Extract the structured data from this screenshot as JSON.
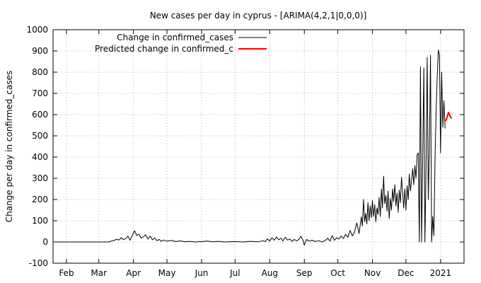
{
  "chart_data": {
    "type": "line",
    "title": "New cases per day in cyprus -  [ARIMA(4,2,1|0,0,0)]",
    "xlabel": "",
    "ylabel": "Change per day in confirmed_cases",
    "x_axis": "date",
    "xlim": [
      "2020-01-20",
      "2021-01-22"
    ],
    "ylim": [
      -100,
      1000
    ],
    "yticks": [
      -100,
      0,
      100,
      200,
      300,
      400,
      500,
      600,
      700,
      800,
      900,
      1000
    ],
    "xticks": [
      {
        "date": "2020-02-01",
        "label": "Feb"
      },
      {
        "date": "2020-03-01",
        "label": "Mar"
      },
      {
        "date": "2020-04-01",
        "label": "Apr"
      },
      {
        "date": "2020-05-01",
        "label": "May"
      },
      {
        "date": "2020-06-01",
        "label": "Jun"
      },
      {
        "date": "2020-07-01",
        "label": "Jul"
      },
      {
        "date": "2020-08-01",
        "label": "Aug"
      },
      {
        "date": "2020-09-01",
        "label": "Sep"
      },
      {
        "date": "2020-10-01",
        "label": "Oct"
      },
      {
        "date": "2020-11-01",
        "label": "Nov"
      },
      {
        "date": "2020-12-01",
        "label": "Dec"
      },
      {
        "date": "2021-01-01",
        "label": "2021"
      }
    ],
    "grid": true,
    "legend_position": "top-left",
    "series": [
      {
        "name": "Change in confirmed_cases",
        "color": "#000000",
        "points": [
          [
            "2020-01-22",
            0
          ],
          [
            "2020-02-15",
            0
          ],
          [
            "2020-03-09",
            0
          ],
          [
            "2020-03-11",
            2
          ],
          [
            "2020-03-13",
            6
          ],
          [
            "2020-03-15",
            8
          ],
          [
            "2020-03-17",
            13
          ],
          [
            "2020-03-19",
            9
          ],
          [
            "2020-03-21",
            20
          ],
          [
            "2020-03-23",
            11
          ],
          [
            "2020-03-25",
            16
          ],
          [
            "2020-03-27",
            27
          ],
          [
            "2020-03-29",
            8
          ],
          [
            "2020-03-31",
            32
          ],
          [
            "2020-04-02",
            53
          ],
          [
            "2020-04-04",
            30
          ],
          [
            "2020-04-06",
            36
          ],
          [
            "2020-04-08",
            18
          ],
          [
            "2020-04-10",
            25
          ],
          [
            "2020-04-12",
            34
          ],
          [
            "2020-04-14",
            14
          ],
          [
            "2020-04-16",
            28
          ],
          [
            "2020-04-18",
            10
          ],
          [
            "2020-04-20",
            19
          ],
          [
            "2020-04-22",
            6
          ],
          [
            "2020-04-24",
            12
          ],
          [
            "2020-04-26",
            3
          ],
          [
            "2020-04-28",
            9
          ],
          [
            "2020-05-01",
            4
          ],
          [
            "2020-05-05",
            7
          ],
          [
            "2020-05-09",
            2
          ],
          [
            "2020-05-13",
            5
          ],
          [
            "2020-05-17",
            1
          ],
          [
            "2020-05-21",
            3
          ],
          [
            "2020-05-26",
            0
          ],
          [
            "2020-06-01",
            2
          ],
          [
            "2020-06-06",
            4
          ],
          [
            "2020-06-11",
            1
          ],
          [
            "2020-06-16",
            3
          ],
          [
            "2020-06-21",
            0
          ],
          [
            "2020-06-26",
            1
          ],
          [
            "2020-07-01",
            2
          ],
          [
            "2020-07-08",
            0
          ],
          [
            "2020-07-15",
            3
          ],
          [
            "2020-07-22",
            1
          ],
          [
            "2020-07-26",
            6
          ],
          [
            "2020-07-28",
            2
          ],
          [
            "2020-07-30",
            15
          ],
          [
            "2020-08-01",
            4
          ],
          [
            "2020-08-03",
            20
          ],
          [
            "2020-08-05",
            8
          ],
          [
            "2020-08-07",
            24
          ],
          [
            "2020-08-09",
            10
          ],
          [
            "2020-08-11",
            18
          ],
          [
            "2020-08-13",
            5
          ],
          [
            "2020-08-15",
            22
          ],
          [
            "2020-08-17",
            9
          ],
          [
            "2020-08-19",
            14
          ],
          [
            "2020-08-21",
            3
          ],
          [
            "2020-08-23",
            12
          ],
          [
            "2020-08-25",
            5
          ],
          [
            "2020-08-27",
            11
          ],
          [
            "2020-08-29",
            27
          ],
          [
            "2020-08-31",
            5
          ],
          [
            "2020-09-01",
            -15
          ],
          [
            "2020-09-03",
            12
          ],
          [
            "2020-09-05",
            4
          ],
          [
            "2020-09-08",
            8
          ],
          [
            "2020-09-11",
            2
          ],
          [
            "2020-09-14",
            6
          ],
          [
            "2020-09-17",
            0
          ],
          [
            "2020-09-20",
            8
          ],
          [
            "2020-09-22",
            18
          ],
          [
            "2020-09-24",
            4
          ],
          [
            "2020-09-26",
            30
          ],
          [
            "2020-09-28",
            8
          ],
          [
            "2020-09-30",
            20
          ],
          [
            "2020-10-02",
            14
          ],
          [
            "2020-10-04",
            28
          ],
          [
            "2020-10-06",
            16
          ],
          [
            "2020-10-08",
            36
          ],
          [
            "2020-10-10",
            22
          ],
          [
            "2020-10-12",
            54
          ],
          [
            "2020-10-14",
            28
          ],
          [
            "2020-10-16",
            48
          ],
          [
            "2020-10-18",
            90
          ],
          [
            "2020-10-20",
            40
          ],
          [
            "2020-10-22",
            118
          ],
          [
            "2020-10-23",
            75
          ],
          [
            "2020-10-24",
            200
          ],
          [
            "2020-10-25",
            95
          ],
          [
            "2020-10-26",
            135
          ],
          [
            "2020-10-27",
            85
          ],
          [
            "2020-10-28",
            185
          ],
          [
            "2020-10-29",
            100
          ],
          [
            "2020-10-30",
            170
          ],
          [
            "2020-10-31",
            115
          ],
          [
            "2020-11-01",
            195
          ],
          [
            "2020-11-02",
            120
          ],
          [
            "2020-11-03",
            175
          ],
          [
            "2020-11-04",
            95
          ],
          [
            "2020-11-05",
            160
          ],
          [
            "2020-11-06",
            130
          ],
          [
            "2020-11-07",
            210
          ],
          [
            "2020-11-08",
            120
          ],
          [
            "2020-11-09",
            250
          ],
          [
            "2020-11-10",
            160
          ],
          [
            "2020-11-11",
            310
          ],
          [
            "2020-11-12",
            180
          ],
          [
            "2020-11-13",
            220
          ],
          [
            "2020-11-14",
            145
          ],
          [
            "2020-11-15",
            240
          ],
          [
            "2020-11-16",
            110
          ],
          [
            "2020-11-17",
            205
          ],
          [
            "2020-11-18",
            150
          ],
          [
            "2020-11-19",
            250
          ],
          [
            "2020-11-20",
            190
          ],
          [
            "2020-11-21",
            270
          ],
          [
            "2020-11-22",
            170
          ],
          [
            "2020-11-23",
            230
          ],
          [
            "2020-11-24",
            140
          ],
          [
            "2020-11-25",
            245
          ],
          [
            "2020-11-26",
            185
          ],
          [
            "2020-11-27",
            305
          ],
          [
            "2020-11-28",
            230
          ],
          [
            "2020-11-29",
            160
          ],
          [
            "2020-11-30",
            250
          ],
          [
            "2020-12-01",
            150
          ],
          [
            "2020-12-02",
            265
          ],
          [
            "2020-12-03",
            200
          ],
          [
            "2020-12-04",
            320
          ],
          [
            "2020-12-05",
            240
          ],
          [
            "2020-12-06",
            290
          ],
          [
            "2020-12-07",
            345
          ],
          [
            "2020-12-08",
            270
          ],
          [
            "2020-12-09",
            360
          ],
          [
            "2020-12-10",
            300
          ],
          [
            "2020-12-11",
            410
          ],
          [
            "2020-12-12",
            420
          ],
          [
            "2020-12-13",
            0
          ],
          [
            "2020-12-14",
            825
          ],
          [
            "2020-12-15",
            0
          ],
          [
            "2020-12-16",
            400
          ],
          [
            "2020-12-17",
            820
          ],
          [
            "2020-12-18",
            0
          ],
          [
            "2020-12-19",
            350
          ],
          [
            "2020-12-20",
            870
          ],
          [
            "2020-12-21",
            200
          ],
          [
            "2020-12-22",
            460
          ],
          [
            "2020-12-23",
            880
          ],
          [
            "2020-12-24",
            0
          ],
          [
            "2020-12-25",
            120
          ],
          [
            "2020-12-26",
            30
          ],
          [
            "2020-12-27",
            390
          ],
          [
            "2020-12-28",
            610
          ],
          [
            "2020-12-29",
            780
          ],
          [
            "2020-12-30",
            905
          ],
          [
            "2020-12-31",
            880
          ],
          [
            "2021-01-01",
            420
          ],
          [
            "2021-01-02",
            800
          ],
          [
            "2021-01-03",
            540
          ],
          [
            "2021-01-04",
            665
          ],
          [
            "2021-01-05",
            535
          ]
        ]
      },
      {
        "name": "Predicted change in confirmed_c",
        "color": "#ff0000",
        "points": [
          [
            "2021-01-05",
            570
          ],
          [
            "2021-01-06",
            575
          ],
          [
            "2021-01-07",
            590
          ],
          [
            "2021-01-08",
            610
          ],
          [
            "2021-01-09",
            600
          ],
          [
            "2021-01-10",
            588
          ],
          [
            "2021-01-11",
            582
          ]
        ]
      }
    ]
  }
}
